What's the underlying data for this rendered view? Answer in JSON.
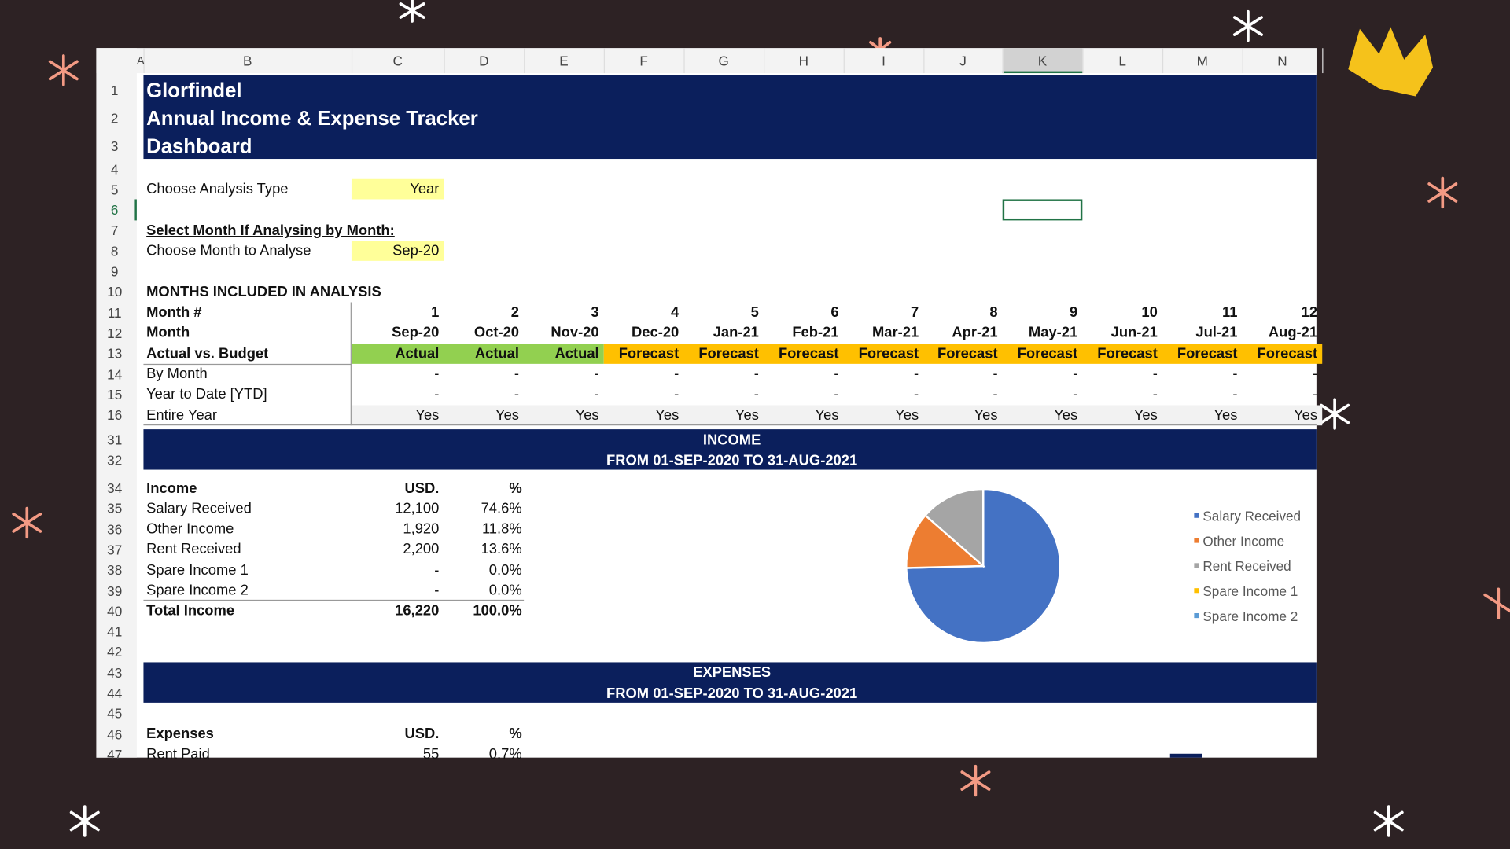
{
  "column_headers": [
    "A",
    "B",
    "C",
    "D",
    "E",
    "F",
    "G",
    "H",
    "I",
    "J",
    "K",
    "L",
    "M",
    "N"
  ],
  "row_numbers": [
    1,
    2,
    3,
    4,
    5,
    6,
    7,
    8,
    9,
    10,
    11,
    12,
    13,
    14,
    15,
    16,
    31,
    32,
    34,
    35,
    36,
    37,
    38,
    39,
    40,
    41,
    42,
    43,
    44,
    45,
    46,
    47
  ],
  "header": {
    "line1": "Glorfindel",
    "line2": "Annual Income & Expense Tracker",
    "line3": "Dashboard"
  },
  "analysis_type": {
    "label": "Choose Analysis Type",
    "value": "Year"
  },
  "month_select": {
    "heading": "Select Month If Analysing by Month:",
    "label": "Choose Month to Analyse",
    "value": "Sep-20"
  },
  "months_table": {
    "title": "MONTHS INCLUDED IN ANALYSIS",
    "row_labels": [
      "Month #",
      "Month",
      "Actual vs. Budget",
      "By Month",
      "Year to Date [YTD]",
      "Entire Year"
    ],
    "columns": [
      {
        "num": "1",
        "month": "Sep-20",
        "type": "Actual",
        "by_month": "-",
        "ytd": "-",
        "entire": "Yes"
      },
      {
        "num": "2",
        "month": "Oct-20",
        "type": "Actual",
        "by_month": "-",
        "ytd": "-",
        "entire": "Yes"
      },
      {
        "num": "3",
        "month": "Nov-20",
        "type": "Actual",
        "by_month": "-",
        "ytd": "-",
        "entire": "Yes"
      },
      {
        "num": "4",
        "month": "Dec-20",
        "type": "Forecast",
        "by_month": "-",
        "ytd": "-",
        "entire": "Yes"
      },
      {
        "num": "5",
        "month": "Jan-21",
        "type": "Forecast",
        "by_month": "-",
        "ytd": "-",
        "entire": "Yes"
      },
      {
        "num": "6",
        "month": "Feb-21",
        "type": "Forecast",
        "by_month": "-",
        "ytd": "-",
        "entire": "Yes"
      },
      {
        "num": "7",
        "month": "Mar-21",
        "type": "Forecast",
        "by_month": "-",
        "ytd": "-",
        "entire": "Yes"
      },
      {
        "num": "8",
        "month": "Apr-21",
        "type": "Forecast",
        "by_month": "-",
        "ytd": "-",
        "entire": "Yes"
      },
      {
        "num": "9",
        "month": "May-21",
        "type": "Forecast",
        "by_month": "-",
        "ytd": "-",
        "entire": "Yes"
      },
      {
        "num": "10",
        "month": "Jun-21",
        "type": "Forecast",
        "by_month": "-",
        "ytd": "-",
        "entire": "Yes"
      },
      {
        "num": "11",
        "month": "Jul-21",
        "type": "Forecast",
        "by_month": "-",
        "ytd": "-",
        "entire": "Yes"
      },
      {
        "num": "12",
        "month": "Aug-21",
        "type": "Forecast",
        "by_month": "-",
        "ytd": "-",
        "entire": "Yes"
      }
    ]
  },
  "income": {
    "title": "INCOME",
    "subtitle": "FROM 01-SEP-2020 TO 31-AUG-2021",
    "headers": [
      "Income",
      "USD.",
      "%"
    ],
    "rows": [
      {
        "label": "Salary Received",
        "usd": 12100,
        "usd_label": "12,100",
        "pct": "74.6%"
      },
      {
        "label": "Other Income",
        "usd": 1920,
        "usd_label": "1,920",
        "pct": "11.8%"
      },
      {
        "label": "Rent Received",
        "usd": 2200,
        "usd_label": "2,200",
        "pct": "13.6%"
      },
      {
        "label": "Spare Income 1",
        "usd": 0,
        "usd_label": "-",
        "pct": "0.0%"
      },
      {
        "label": "Spare Income 2",
        "usd": 0,
        "usd_label": "-",
        "pct": "0.0%"
      }
    ],
    "total": {
      "label": "Total Income",
      "usd": "16,220",
      "pct": "100.0%"
    },
    "chart": {
      "type": "pie",
      "colors": [
        "#4472c4",
        "#ed7d31",
        "#a5a5a5",
        "#ffc000",
        "#5b9bd5"
      ]
    }
  },
  "expenses": {
    "title": "EXPENSES",
    "subtitle": "FROM 01-SEP-2020 TO 31-AUG-2021",
    "headers": [
      "Expenses",
      "USD.",
      "%"
    ],
    "rows": [
      {
        "label": "Rent Paid",
        "usd": "55",
        "pct": "0.7%"
      }
    ]
  }
}
